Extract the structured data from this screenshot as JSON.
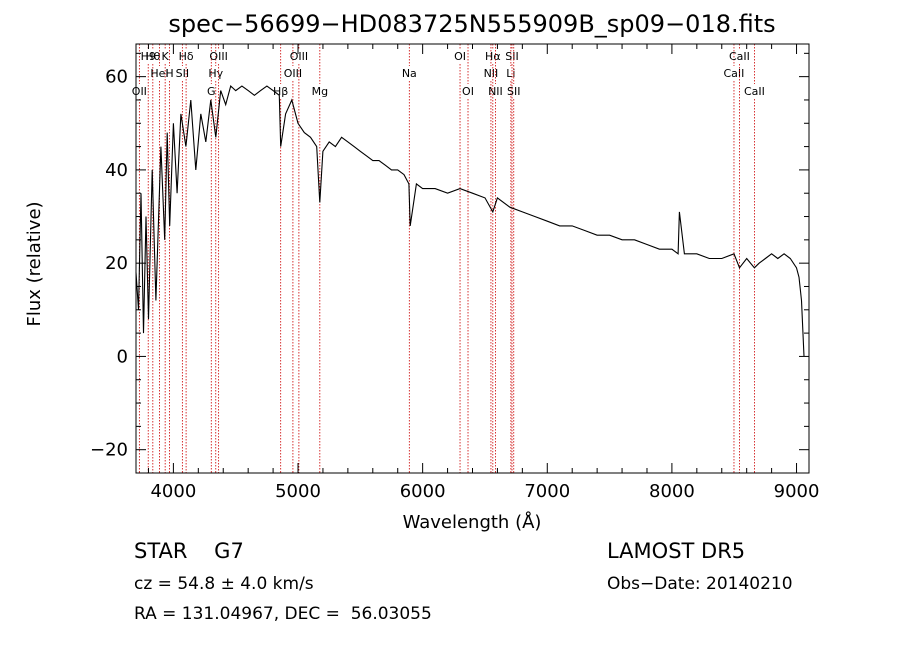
{
  "chart_data": {
    "type": "line",
    "title": "spec−56699−HD083725N555909B_sp09−018.fits",
    "xlabel": "Wavelength (Å)",
    "ylabel": "Flux (relative)",
    "xlim": [
      3700,
      9100
    ],
    "ylim": [
      -25,
      67
    ],
    "x_ticks": [
      4000,
      5000,
      6000,
      7000,
      8000,
      9000
    ],
    "x_tick_labels": [
      "4000",
      "5000",
      "6000",
      "7000",
      "8000",
      "9000"
    ],
    "y_ticks": [
      -20,
      0,
      20,
      40,
      60
    ],
    "y_tick_labels": [
      "−20",
      "0",
      "20",
      "40",
      "60"
    ],
    "grid": false,
    "series": [
      {
        "x": [
          3700,
          3720,
          3740,
          3760,
          3780,
          3800,
          3830,
          3860,
          3900,
          3930,
          3950,
          3970,
          4000,
          4030,
          4060,
          4100,
          4140,
          4180,
          4220,
          4260,
          4300,
          4340,
          4380,
          4420,
          4460,
          4500,
          4550,
          4600,
          4650,
          4700,
          4750,
          4800,
          4850,
          4861,
          4900,
          4950,
          5000,
          5050,
          5100,
          5150,
          5175,
          5200,
          5250,
          5300,
          5350,
          5400,
          5450,
          5500,
          5550,
          5600,
          5650,
          5700,
          5750,
          5800,
          5850,
          5890,
          5900,
          5950,
          6000,
          6100,
          6200,
          6300,
          6400,
          6500,
          6563,
          6600,
          6700,
          6800,
          6900,
          7000,
          7100,
          7200,
          7300,
          7400,
          7500,
          7600,
          7700,
          7800,
          7900,
          8000,
          8050,
          8060,
          8100,
          8200,
          8300,
          8400,
          8498,
          8542,
          8600,
          8662,
          8700,
          8750,
          8800,
          8850,
          8900,
          8950,
          9000,
          9020,
          9040,
          9060
        ],
        "y": [
          18,
          10,
          35,
          5,
          30,
          8,
          40,
          12,
          45,
          25,
          48,
          28,
          50,
          35,
          52,
          45,
          55,
          40,
          52,
          46,
          55,
          47,
          57,
          54,
          58,
          57,
          58,
          57,
          56,
          57,
          58,
          57,
          56,
          45,
          52,
          55,
          50,
          48,
          47,
          45,
          33,
          44,
          46,
          45,
          47,
          46,
          45,
          44,
          43,
          42,
          42,
          41,
          40,
          40,
          39,
          37,
          28,
          37,
          36,
          36,
          35,
          36,
          35,
          34,
          31,
          34,
          32,
          31,
          30,
          29,
          28,
          28,
          27,
          26,
          26,
          25,
          25,
          24,
          23,
          23,
          22,
          31,
          22,
          22,
          21,
          21,
          22,
          19,
          21,
          19,
          20,
          21,
          22,
          21,
          22,
          21,
          19,
          17,
          12,
          0
        ]
      }
    ],
    "line_markers": [
      {
        "w": 3727,
        "row": 3,
        "label": "OII"
      },
      {
        "w": 3798,
        "row": 1,
        "label": "H9"
      },
      {
        "w": 3835,
        "row": 1,
        "label": "Hθ"
      },
      {
        "w": 3889,
        "row": 2,
        "label": "HeI"
      },
      {
        "w": 3934,
        "row": 1,
        "label": "K"
      },
      {
        "w": 3969,
        "row": 2,
        "label": "H"
      },
      {
        "w": 4072,
        "row": 2,
        "label": "SII"
      },
      {
        "w": 4102,
        "row": 1,
        "label": "Hδ"
      },
      {
        "w": 4304,
        "row": 3,
        "label": "G"
      },
      {
        "w": 4340,
        "row": 2,
        "label": "Hγ"
      },
      {
        "w": 4363,
        "row": 1,
        "label": "OIII"
      },
      {
        "w": 4861,
        "row": 3,
        "label": "Hβ"
      },
      {
        "w": 4959,
        "row": 2,
        "label": "OIII"
      },
      {
        "w": 5007,
        "row": 1,
        "label": "OIII"
      },
      {
        "w": 5175,
        "row": 3,
        "label": "Mg"
      },
      {
        "w": 5893,
        "row": 2,
        "label": "Na"
      },
      {
        "w": 6300,
        "row": 1,
        "label": "OI"
      },
      {
        "w": 6364,
        "row": 3,
        "label": "OI"
      },
      {
        "w": 6548,
        "row": 2,
        "label": "NII"
      },
      {
        "w": 6563,
        "row": 1,
        "label": "Hα"
      },
      {
        "w": 6584,
        "row": 3,
        "label": "NII"
      },
      {
        "w": 6708,
        "row": 2,
        "label": "Li"
      },
      {
        "w": 6717,
        "row": 1,
        "label": "SII"
      },
      {
        "w": 6731,
        "row": 3,
        "label": "SII"
      },
      {
        "w": 8498,
        "row": 2,
        "label": "CaII"
      },
      {
        "w": 8542,
        "row": 1,
        "label": "CaII"
      },
      {
        "w": 8662,
        "row": 3,
        "label": "CaII"
      }
    ],
    "marker_color": "#cc0000",
    "line_color": "#000000"
  },
  "footer": {
    "object": "STAR    G7",
    "redshift": "cz = 54.8 ± 4.0 km/s",
    "coords": "RA = 131.04967, DEC =  56.03055",
    "survey": "LAMOST DR5",
    "obs_date": "Obs−Date: 20140210"
  }
}
